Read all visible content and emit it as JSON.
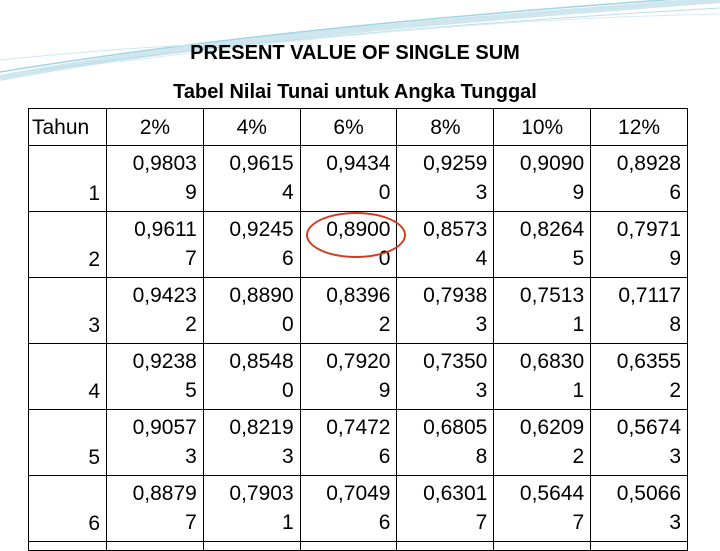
{
  "title": "PRESENT VALUE OF SINGLE SUM",
  "subtitle": "Tabel Nilai Tunai untuk Angka Tunggal",
  "table": {
    "header": [
      "Tahun",
      "2%",
      "4%",
      "6%",
      "8%",
      "10%",
      "12%"
    ],
    "rows": [
      {
        "year": "1",
        "values": [
          [
            "0,9803",
            "9"
          ],
          [
            "0,9615",
            "4"
          ],
          [
            "0,9434",
            "0"
          ],
          [
            "0,9259",
            "3"
          ],
          [
            "0,9090",
            "9"
          ],
          [
            "0,8928",
            "6"
          ]
        ]
      },
      {
        "year": "2",
        "values": [
          [
            "0,9611",
            "7"
          ],
          [
            "0,9245",
            "6"
          ],
          [
            "0,8900",
            "0"
          ],
          [
            "0,8573",
            "4"
          ],
          [
            "0,8264",
            "5"
          ],
          [
            "0,7971",
            "9"
          ]
        ]
      },
      {
        "year": "3",
        "values": [
          [
            "0,9423",
            "2"
          ],
          [
            "0,8890",
            "0"
          ],
          [
            "0,8396",
            "2"
          ],
          [
            "0,7938",
            "3"
          ],
          [
            "0,7513",
            "1"
          ],
          [
            "0,7117",
            "8"
          ]
        ]
      },
      {
        "year": "4",
        "values": [
          [
            "0,9238",
            "5"
          ],
          [
            "0,8548",
            "0"
          ],
          [
            "0,7920",
            "9"
          ],
          [
            "0,7350",
            "3"
          ],
          [
            "0,6830",
            "1"
          ],
          [
            "0,6355",
            "2"
          ]
        ]
      },
      {
        "year": "5",
        "values": [
          [
            "0,9057",
            "3"
          ],
          [
            "0,8219",
            "3"
          ],
          [
            "0,7472",
            "6"
          ],
          [
            "0,6805",
            "8"
          ],
          [
            "0,6209",
            "2"
          ],
          [
            "0,5674",
            "3"
          ]
        ]
      },
      {
        "year": "6",
        "values": [
          [
            "0,8879",
            "7"
          ],
          [
            "0,7903",
            "1"
          ],
          [
            "0,7049",
            "6"
          ],
          [
            "0,6301",
            "7"
          ],
          [
            "0,5644",
            "7"
          ],
          [
            "0,5066",
            "3"
          ]
        ]
      }
    ]
  },
  "colors": {
    "accent_line": "#7fc7d9",
    "highlight_circle": "#d23a1e"
  }
}
